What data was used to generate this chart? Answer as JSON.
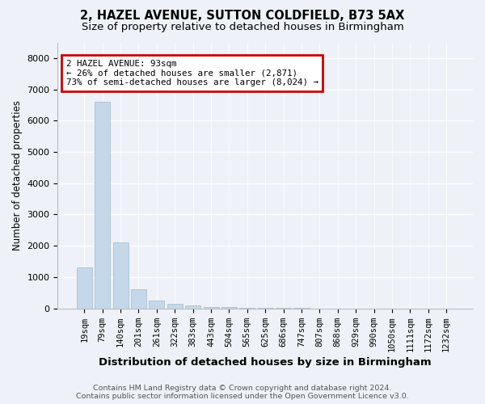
{
  "title_line1": "2, HAZEL AVENUE, SUTTON COLDFIELD, B73 5AX",
  "title_line2": "Size of property relative to detached houses in Birmingham",
  "xlabel": "Distribution of detached houses by size in Birmingham",
  "ylabel": "Number of detached properties",
  "annotation_title": "2 HAZEL AVENUE: 93sqm",
  "annotation_line2": "← 26% of detached houses are smaller (2,871)",
  "annotation_line3": "73% of semi-detached houses are larger (8,024) →",
  "footer_line1": "Contains HM Land Registry data © Crown copyright and database right 2024.",
  "footer_line2": "Contains public sector information licensed under the Open Government Licence v3.0.",
  "bin_labels": [
    "19sqm",
    "79sqm",
    "140sqm",
    "201sqm",
    "261sqm",
    "322sqm",
    "383sqm",
    "443sqm",
    "504sqm",
    "565sqm",
    "625sqm",
    "686sqm",
    "747sqm",
    "807sqm",
    "868sqm",
    "929sqm",
    "990sqm",
    "1050sqm",
    "1111sqm",
    "1172sqm",
    "1232sqm"
  ],
  "bar_values": [
    1300,
    6600,
    2100,
    600,
    250,
    150,
    100,
    50,
    30,
    20,
    10,
    5,
    3,
    2,
    1,
    1,
    0,
    0,
    0,
    0,
    0
  ],
  "bar_color": "#c5d8ea",
  "bar_edge_color": "#a0b8cc",
  "annotation_box_color": "#cc0000",
  "background_color": "#eef2f8",
  "ylim": [
    0,
    8500
  ],
  "yticks": [
    0,
    1000,
    2000,
    3000,
    4000,
    5000,
    6000,
    7000,
    8000
  ],
  "grid_color": "#ffffff",
  "title_fontsize": 10.5,
  "subtitle_fontsize": 9.5,
  "axis_label_fontsize": 8.5,
  "ylabel_fontsize": 8.5,
  "tick_fontsize": 7.5,
  "footer_fontsize": 6.8,
  "ann_fontsize": 7.8
}
